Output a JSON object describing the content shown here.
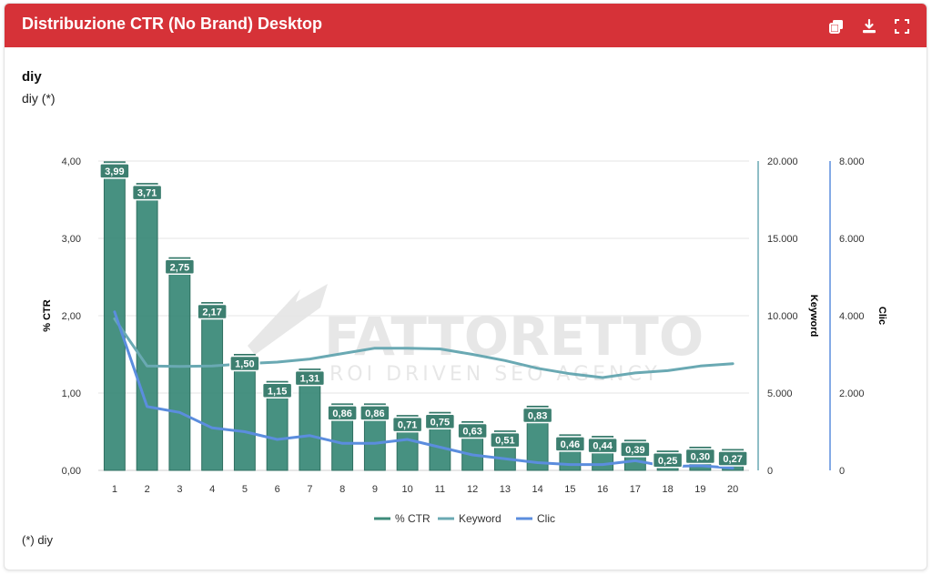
{
  "header": {
    "title": "Distribuzione CTR (No Brand) Desktop",
    "icons": [
      "copy-icon",
      "download-icon",
      "fullscreen-icon"
    ]
  },
  "subtitle_bold": "diy",
  "subtitle": "diy (*)",
  "footnote": "(*) diy",
  "watermark": {
    "name": "FATTORETTO",
    "tagline": "ROI DRIVEN SEO AGENCY"
  },
  "colors": {
    "header": "#d63238",
    "bar": "#3d8b7a",
    "keyword": "#6aa9b3",
    "clic": "#5b8dde"
  },
  "chart_data": {
    "type": "bar",
    "categories": [
      "1",
      "2",
      "3",
      "4",
      "5",
      "6",
      "7",
      "8",
      "9",
      "10",
      "11",
      "12",
      "13",
      "14",
      "15",
      "16",
      "17",
      "18",
      "19",
      "20"
    ],
    "series": [
      {
        "name": "% CTR",
        "type": "bar",
        "axis": "left",
        "values": [
          3.99,
          3.71,
          2.75,
          2.17,
          1.5,
          1.15,
          1.31,
          0.86,
          0.86,
          0.71,
          0.75,
          0.63,
          0.51,
          0.83,
          0.46,
          0.44,
          0.39,
          0.25,
          0.3,
          0.27
        ],
        "labels": [
          "3,99",
          "3,71",
          "2,75",
          "2,17",
          "1,50",
          "1,15",
          "1,31",
          "0,86",
          "0,86",
          "0,71",
          "0,75",
          "0,63",
          "0,51",
          "0,83",
          "0,46",
          "0,44",
          "0,39",
          "0,25",
          "0,30",
          "0,27"
        ]
      },
      {
        "name": "Keyword",
        "type": "line",
        "axis": "right1",
        "values": [
          9800,
          6750,
          6720,
          6750,
          6900,
          7000,
          7200,
          7550,
          7900,
          7900,
          7850,
          7500,
          7100,
          6600,
          6250,
          6000,
          6300,
          6450,
          6750,
          6900
        ]
      },
      {
        "name": "Clic",
        "type": "line",
        "axis": "right2",
        "values": [
          4100,
          1650,
          1500,
          1100,
          1000,
          800,
          900,
          700,
          700,
          800,
          600,
          400,
          300,
          200,
          150,
          150,
          250,
          100,
          120,
          60
        ]
      }
    ],
    "axes": {
      "left": {
        "title": "% CTR",
        "ylim": [
          0,
          4
        ],
        "ticks": [
          "0,00",
          "1,00",
          "2,00",
          "3,00",
          "4,00"
        ]
      },
      "right1": {
        "title": "Keyword",
        "ylim": [
          0,
          20000
        ],
        "ticks": [
          "0",
          "5.000",
          "10.000",
          "15.000",
          "20.000"
        ]
      },
      "right2": {
        "title": "Clic",
        "ylim": [
          0,
          8000
        ],
        "ticks": [
          "0",
          "2.000",
          "4.000",
          "6.000",
          "8.000"
        ]
      }
    },
    "grid": true,
    "legend": {
      "position": "bottom",
      "entries": [
        "% CTR",
        "Keyword",
        "Clic"
      ]
    }
  }
}
